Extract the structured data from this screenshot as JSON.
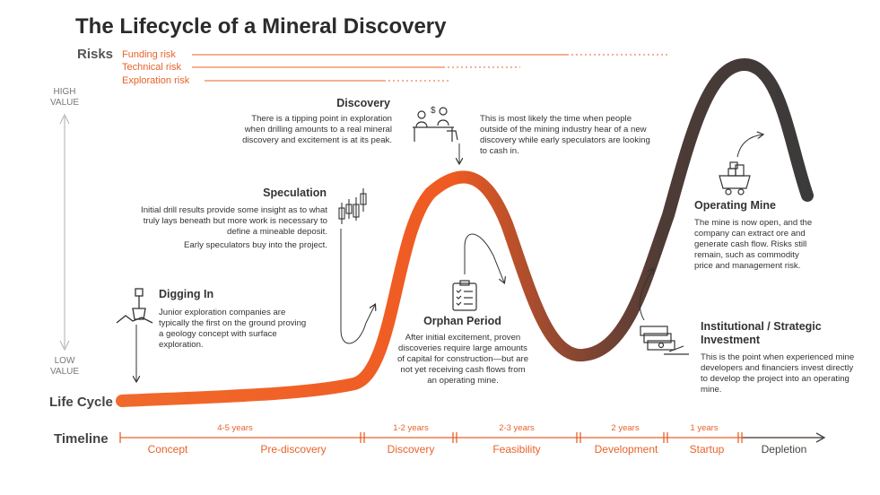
{
  "title": "The Lifecycle of a Mineral Discovery",
  "risks": {
    "heading": "Risks",
    "items": [
      "Funding risk",
      "Technical risk",
      "Exploration risk"
    ]
  },
  "value_axis": {
    "high": "HIGH\nVALUE",
    "low": "LOW\nVALUE"
  },
  "life_cycle_label": "Life Cycle",
  "timeline_label": "Timeline",
  "stages": {
    "digging_in": {
      "heading": "Digging In",
      "text": "Junior exploration companies are typically the first on the ground proving a geology concept with surface exploration."
    },
    "speculation": {
      "heading": "Speculation",
      "text": "Initial drill results provide some insight as to what truly lays beneath but more work is necessary to define a mineable deposit.",
      "text2": "Early speculators buy into the project."
    },
    "discovery": {
      "heading": "Discovery",
      "text": "There is a tipping point in exploration when drilling amounts to a real mineral discovery and excitement is at its peak.",
      "note": "This is most likely the time when people outside of the mining industry hear of a new discovery while early speculators are looking to cash in."
    },
    "orphan": {
      "heading": "Orphan Period",
      "text": "After initial excitement, proven discoveries require large amounts of capital for construction—but are not yet receiving cash flows from an operating mine."
    },
    "institutional": {
      "heading": "Institutional / Strategic Investment",
      "text": "This is the point when experienced mine developers and financiers invest directly to develop the project into an operating mine."
    },
    "operating": {
      "heading": "Operating Mine",
      "text": "The mine is now open, and the company can extract ore and generate cash flow. Risks still remain, such as commodity price and management risk."
    }
  },
  "timeline": {
    "durations": [
      "4-5 years",
      "1-2 years",
      "2-3 years",
      "2 years",
      "1 years"
    ],
    "phases": [
      "Concept",
      "Pre-discovery",
      "Discovery",
      "Feasibility",
      "Development",
      "Startup",
      "Depletion"
    ]
  },
  "colors": {
    "orange": "#e8622a",
    "dark": "#3b3b3b",
    "grey": "#888888"
  }
}
